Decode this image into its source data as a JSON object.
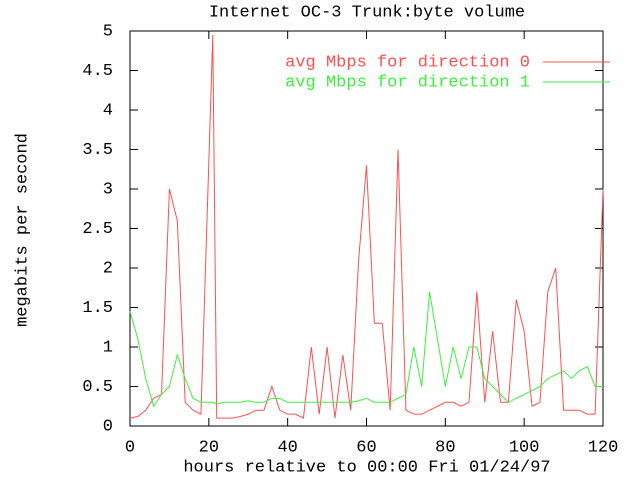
{
  "chart_data": {
    "type": "line",
    "title": "Internet OC-3 Trunk:byte volume",
    "x_label": "hours relative to 00:00 Fri 01/24/97",
    "y_label": "megabits per second",
    "x": [
      0,
      2,
      4,
      6,
      8,
      10,
      12,
      14,
      16,
      18,
      21,
      22,
      24,
      26,
      28,
      30,
      32,
      34,
      36,
      38,
      40,
      42,
      44,
      46,
      48,
      50,
      52,
      54,
      56,
      58,
      60,
      62,
      64,
      66,
      68,
      70,
      72,
      74,
      76,
      78,
      80,
      82,
      84,
      86,
      88,
      90,
      92,
      94,
      96,
      98,
      100,
      102,
      104,
      106,
      108,
      110,
      112,
      114,
      116,
      118,
      120
    ],
    "series": [
      {
        "name": "avg Mbps for direction 0",
        "color": "#ff5050",
        "values": [
          0.1,
          0.12,
          0.2,
          0.35,
          0.4,
          3.0,
          2.6,
          0.3,
          0.2,
          0.15,
          4.95,
          0.1,
          0.1,
          0.1,
          0.12,
          0.15,
          0.2,
          0.2,
          0.5,
          0.2,
          0.15,
          0.15,
          0.1,
          1.0,
          0.15,
          1.0,
          0.1,
          0.9,
          0.2,
          2.1,
          3.3,
          1.3,
          1.3,
          0.2,
          3.5,
          0.2,
          0.15,
          0.15,
          0.2,
          0.25,
          0.3,
          0.3,
          0.25,
          0.3,
          1.7,
          0.3,
          1.2,
          0.3,
          0.3,
          1.6,
          1.2,
          0.25,
          0.3,
          1.7,
          2.0,
          0.2,
          0.2,
          0.2,
          0.15,
          0.15,
          3.0
        ]
      },
      {
        "name": "avg Mbps for direction 1",
        "color": "#40ee40",
        "values": [
          1.45,
          1.1,
          0.6,
          0.25,
          0.4,
          0.5,
          0.9,
          0.6,
          0.35,
          0.3,
          0.3,
          0.28,
          0.3,
          0.3,
          0.3,
          0.32,
          0.3,
          0.3,
          0.35,
          0.35,
          0.3,
          0.3,
          0.3,
          0.3,
          0.3,
          0.3,
          0.3,
          0.3,
          0.3,
          0.32,
          0.35,
          0.3,
          0.3,
          0.3,
          0.35,
          0.4,
          1.0,
          0.5,
          1.7,
          1.1,
          0.5,
          1.0,
          0.6,
          1.0,
          1.0,
          0.6,
          0.5,
          0.4,
          0.3,
          0.35,
          0.4,
          0.45,
          0.5,
          0.6,
          0.65,
          0.7,
          0.6,
          0.7,
          0.75,
          0.5,
          0.5
        ]
      }
    ],
    "xlim": [
      0,
      120
    ],
    "xticks": [
      0,
      20,
      40,
      60,
      80,
      100,
      120
    ],
    "ylim": [
      0,
      5
    ],
    "yticks": [
      0,
      0.5,
      1,
      1.5,
      2,
      2.5,
      3,
      3.5,
      4,
      4.5,
      5
    ],
    "legend": "top-right"
  }
}
